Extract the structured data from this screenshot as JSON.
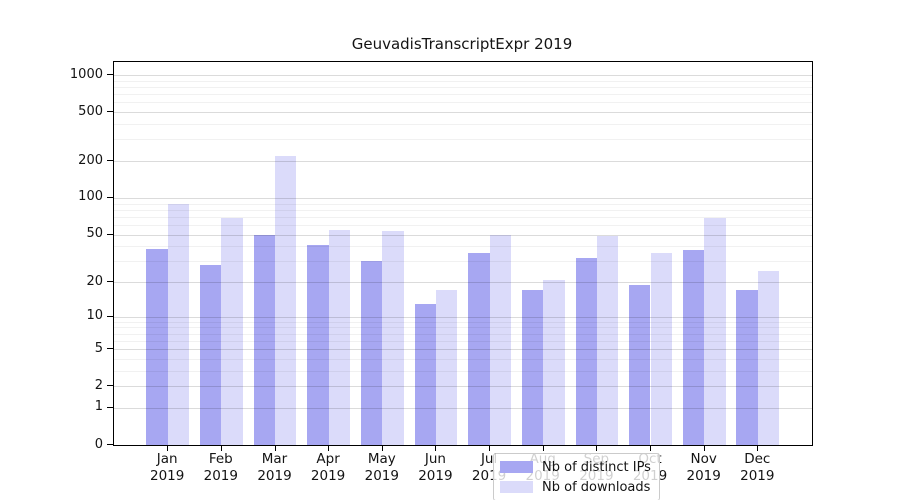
{
  "title": "GeuvadisTranscriptExpr 2019",
  "chart_data": {
    "type": "bar",
    "title": "GeuvadisTranscriptExpr 2019",
    "scale": "log10(1+x) symlog-style y axis",
    "categories": [
      "Jan",
      "Feb",
      "Mar",
      "Apr",
      "May",
      "Jun",
      "Jul",
      "Aug",
      "Sep",
      "Oct",
      "Nov",
      "Dec"
    ],
    "year": "2019",
    "series": [
      {
        "name": "Nb of distinct IPs",
        "color": "#a7a7f2",
        "values": [
          38,
          28,
          50,
          41,
          30,
          13,
          35,
          17,
          32,
          19,
          37,
          17
        ]
      },
      {
        "name": "Nb of downloads",
        "color": "#dbdbfa",
        "values": [
          90,
          68,
          220,
          54,
          53,
          17,
          50,
          21,
          49,
          35,
          68,
          25
        ]
      }
    ],
    "xlabel": "",
    "ylabel": "",
    "yticks": [
      0,
      1,
      2,
      5,
      10,
      20,
      50,
      100,
      200,
      500,
      1000
    ],
    "minor_yticks": [
      3,
      4,
      6,
      7,
      8,
      9,
      30,
      40,
      60,
      70,
      80,
      90,
      300,
      400,
      600,
      700,
      800,
      900
    ],
    "ylim": [
      0,
      1280
    ],
    "grid": "horizontal major and minor, drawn over bars",
    "legend_position": "lower center inside plot"
  },
  "legend": {
    "item1": "Nb of distinct IPs",
    "item2": "Nb of downloads"
  }
}
